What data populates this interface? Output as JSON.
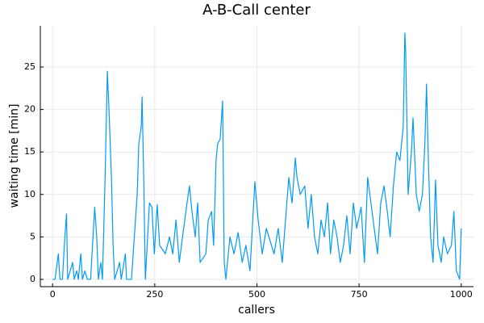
{
  "chart_data": {
    "type": "line",
    "title": "A-B-Call center",
    "x_label": "callers",
    "y_label": "waiting time [min]",
    "x": [
      0,
      6,
      10,
      14,
      18,
      24,
      30,
      34,
      37,
      49,
      53,
      59,
      63,
      69,
      73,
      79,
      85,
      93,
      103,
      108,
      112,
      118,
      122,
      128,
      134,
      138,
      144,
      148,
      152,
      164,
      168,
      178,
      181,
      193,
      207,
      211,
      217,
      219,
      223,
      227,
      237,
      243,
      249,
      256,
      262,
      276,
      286,
      294,
      302,
      310,
      318,
      329,
      335,
      341,
      349,
      355,
      361,
      375,
      381,
      389,
      394,
      400,
      404,
      410,
      416,
      420,
      424,
      434,
      444,
      454,
      464,
      473,
      483,
      495,
      503,
      513,
      523,
      542,
      552,
      562,
      578,
      586,
      594,
      598,
      606,
      617,
      625,
      633,
      641,
      649,
      657,
      665,
      673,
      680,
      688,
      696,
      704,
      712,
      720,
      728,
      736,
      744,
      755,
      763,
      771,
      779,
      787,
      795,
      803,
      811,
      819,
      826,
      834,
      842,
      850,
      858,
      862,
      864,
      870,
      878,
      882,
      890,
      897,
      905,
      911,
      915,
      919,
      925,
      931,
      937,
      943,
      951,
      957,
      966,
      976,
      982,
      988,
      996,
      1000
    ],
    "series": [
      {
        "name": "waiting time",
        "color": "#009af9",
        "values": [
          0,
          0,
          1.5,
          3,
          0,
          0,
          5,
          7.7,
          0,
          2,
          0,
          1,
          0,
          3,
          0,
          1,
          0,
          0,
          8.5,
          5,
          0,
          2,
          0,
          11,
          24.5,
          20,
          12,
          4,
          0,
          2,
          0,
          3,
          0,
          0,
          10,
          16,
          18,
          21.5,
          12,
          0,
          9,
          8.5,
          3,
          8.8,
          4,
          3,
          5,
          3,
          7,
          2,
          5,
          9,
          11,
          8,
          5,
          9,
          2,
          3,
          7,
          8,
          4,
          14,
          16,
          16.5,
          21,
          2,
          0,
          5,
          3,
          5.5,
          2,
          4,
          1,
          11.5,
          7,
          3,
          6,
          3,
          6,
          2,
          12,
          9,
          14.3,
          12,
          10,
          11,
          6,
          10,
          5,
          3,
          7,
          5,
          9,
          3,
          7,
          5,
          2,
          4,
          7.5,
          3,
          9,
          6,
          8.5,
          2,
          12,
          9,
          6,
          3,
          9,
          11,
          8,
          5,
          11,
          15,
          14,
          18,
          29,
          27,
          10,
          15,
          19,
          10,
          8,
          10,
          16,
          23,
          15,
          5,
          2,
          11.7,
          4,
          2,
          5,
          3,
          4,
          8,
          1,
          0,
          6
        ]
      }
    ],
    "xlim": [
      -30,
      1030
    ],
    "ylim": [
      -0.86,
      29.85
    ],
    "xticks": [
      0,
      250,
      500,
      750,
      1000
    ],
    "yticks": [
      0,
      5,
      10,
      15,
      20,
      25
    ],
    "grid": true
  }
}
